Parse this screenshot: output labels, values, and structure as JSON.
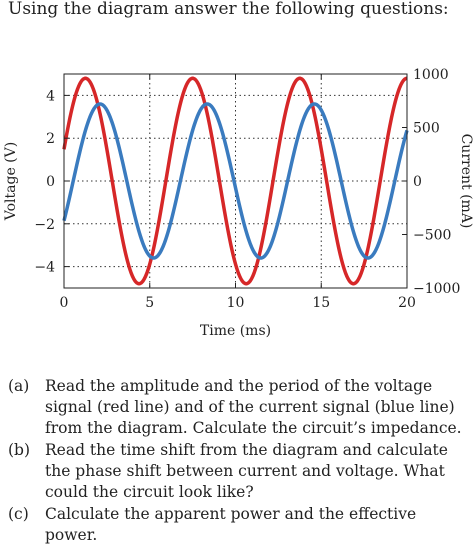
{
  "intro": "Using the diagram answer the following questions:",
  "chart_data": {
    "type": "line",
    "title": "",
    "xlabel": "Time (ms)",
    "ylabel": "Voltage (V)",
    "y2label": "Current (mA)",
    "xlim": [
      0,
      20
    ],
    "ylim": [
      -5,
      5
    ],
    "y2lim": [
      -1000,
      1000
    ],
    "xticks": [
      0,
      5,
      10,
      15,
      20
    ],
    "yticks": [
      4,
      2,
      0,
      -2,
      -4
    ],
    "y2ticks": [
      1000,
      500,
      0,
      -500,
      -1000
    ],
    "xtick_labels": [
      "0",
      "5",
      "10",
      "15",
      "20"
    ],
    "ytick_labels": [
      "4",
      "2",
      "0",
      "−2",
      "−4"
    ],
    "y2tick_labels": [
      "1000",
      "500",
      "0",
      "−500",
      "−1000"
    ],
    "grid": "dotted",
    "series": [
      {
        "axis": "left",
        "color": "#d62728",
        "amplitude": 4.8,
        "period_ms": 6.25,
        "peak_time_ms": 1.25
      },
      {
        "axis": "right",
        "color": "#3a7bbf",
        "amplitude": 720,
        "period_ms": 6.25,
        "peak_time_ms": 2.1
      }
    ]
  },
  "questions": [
    {
      "label": "(a)",
      "text": "Read the amplitude and the period of the voltage signal (red line) and of the current signal (blue line) from the diagram. Calculate the circuit’s impedance."
    },
    {
      "label": "(b)",
      "text": "Read the time shift from the diagram and calculate the phase shift between current and voltage. What could the circuit look like?"
    },
    {
      "label": "(c)",
      "text": "Calculate the apparent power and the effective power."
    }
  ]
}
